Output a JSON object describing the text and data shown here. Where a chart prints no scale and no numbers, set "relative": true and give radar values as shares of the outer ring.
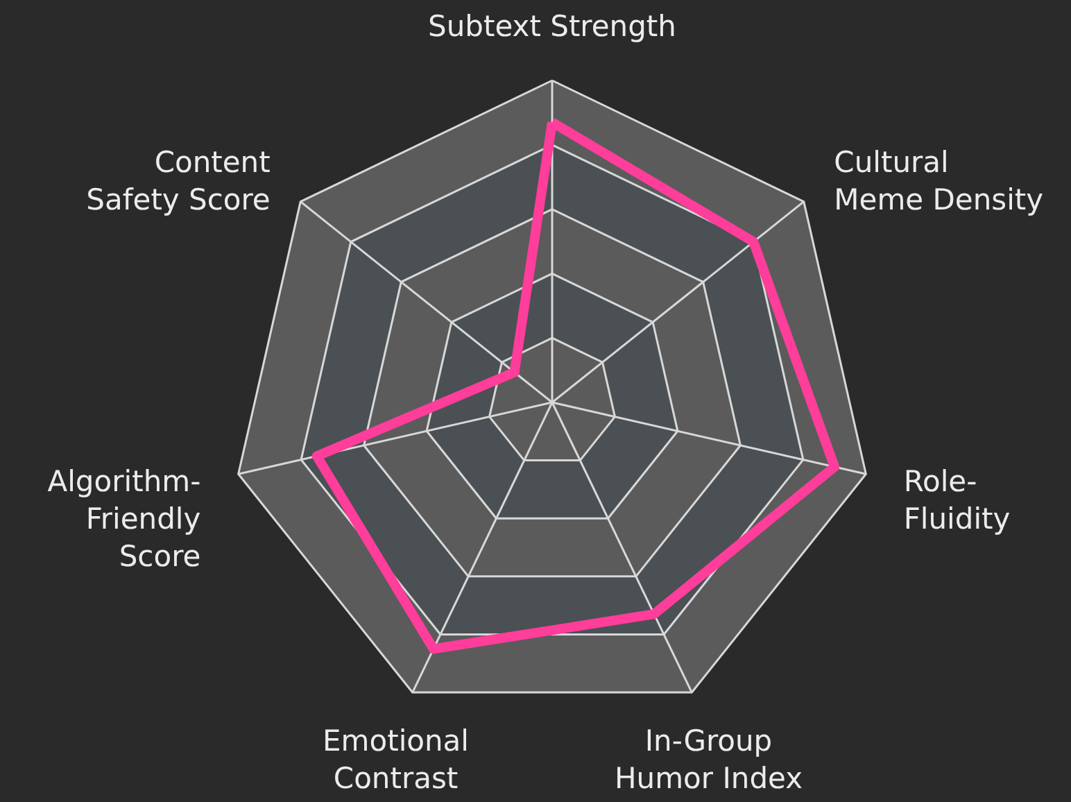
{
  "chart_data": {
    "type": "radar",
    "relative": true,
    "grid": true,
    "categories": [
      "Subtext Strength",
      "Cultural Meme Density",
      "Role-Fluidity",
      "In-Group Humor Index",
      "Emotional Contrast",
      "Algorithm-Friendly Score",
      "Content Safety Score"
    ],
    "series": [
      {
        "color": "#ff3d9a",
        "values": [
          0.87,
          0.8,
          0.9,
          0.73,
          0.85,
          0.75,
          0.15
        ]
      }
    ]
  }
}
